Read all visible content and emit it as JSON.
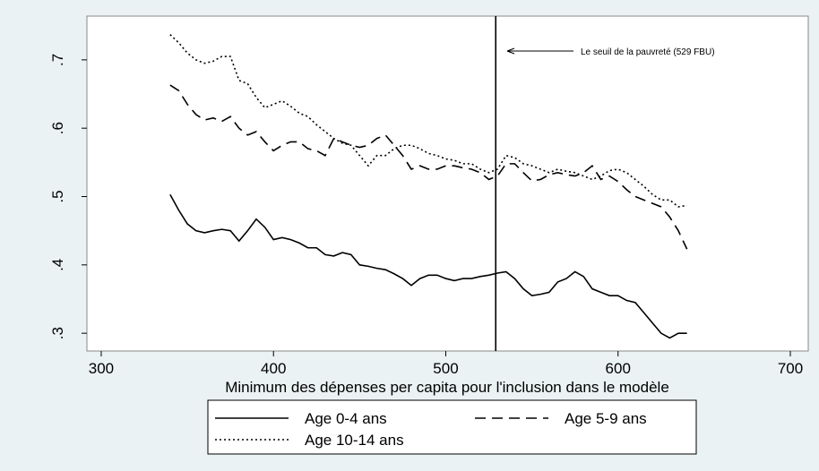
{
  "chart_data": {
    "type": "line",
    "xlabel": "Minimum des dépenses per capita pour l'inclusion dans le modèle",
    "x": [
      340,
      345,
      350,
      355,
      360,
      365,
      370,
      375,
      380,
      385,
      390,
      395,
      400,
      405,
      410,
      415,
      420,
      425,
      430,
      435,
      440,
      445,
      450,
      455,
      460,
      465,
      470,
      475,
      480,
      485,
      490,
      495,
      500,
      505,
      510,
      515,
      520,
      525,
      530,
      535,
      540,
      545,
      550,
      555,
      560,
      565,
      570,
      575,
      580,
      585,
      590,
      595,
      600,
      605,
      610,
      615,
      620,
      625,
      630,
      635,
      640
    ],
    "series": [
      {
        "name": "Age 0-4 ans",
        "color": "#000000",
        "dash": "solid",
        "values": [
          0.503,
          0.48,
          0.46,
          0.45,
          0.447,
          0.45,
          0.452,
          0.45,
          0.435,
          0.45,
          0.467,
          0.455,
          0.437,
          0.44,
          0.437,
          0.432,
          0.425,
          0.425,
          0.415,
          0.413,
          0.418,
          0.415,
          0.4,
          0.398,
          0.395,
          0.393,
          0.387,
          0.38,
          0.37,
          0.38,
          0.385,
          0.385,
          0.38,
          0.377,
          0.38,
          0.38,
          0.383,
          0.385,
          0.388,
          0.39,
          0.38,
          0.365,
          0.355,
          0.357,
          0.36,
          0.375,
          0.38,
          0.39,
          0.383,
          0.365,
          0.36,
          0.355,
          0.355,
          0.348,
          0.345,
          0.33,
          0.315,
          0.3,
          0.293,
          0.3,
          0.3
        ]
      },
      {
        "name": "Age 5-9 ans",
        "color": "#000000",
        "dash": "dashed",
        "values": [
          0.663,
          0.655,
          0.635,
          0.62,
          0.612,
          0.615,
          0.61,
          0.617,
          0.6,
          0.59,
          0.595,
          0.58,
          0.567,
          0.575,
          0.58,
          0.58,
          0.57,
          0.567,
          0.56,
          0.585,
          0.58,
          0.575,
          0.572,
          0.575,
          0.585,
          0.59,
          0.575,
          0.56,
          0.54,
          0.545,
          0.54,
          0.54,
          0.545,
          0.545,
          0.542,
          0.54,
          0.535,
          0.525,
          0.53,
          0.548,
          0.548,
          0.535,
          0.523,
          0.525,
          0.532,
          0.535,
          0.532,
          0.53,
          0.535,
          0.545,
          0.525,
          0.53,
          0.522,
          0.51,
          0.5,
          0.495,
          0.49,
          0.485,
          0.47,
          0.45,
          0.423
        ]
      },
      {
        "name": "Age 10-14 ans",
        "color": "#000000",
        "dash": "dotted",
        "values": [
          0.737,
          0.725,
          0.71,
          0.7,
          0.695,
          0.698,
          0.705,
          0.705,
          0.67,
          0.665,
          0.645,
          0.63,
          0.635,
          0.64,
          0.632,
          0.622,
          0.617,
          0.605,
          0.595,
          0.585,
          0.578,
          0.575,
          0.56,
          0.545,
          0.56,
          0.56,
          0.57,
          0.575,
          0.575,
          0.57,
          0.563,
          0.56,
          0.555,
          0.553,
          0.548,
          0.548,
          0.54,
          0.535,
          0.54,
          0.56,
          0.557,
          0.548,
          0.545,
          0.54,
          0.535,
          0.54,
          0.537,
          0.535,
          0.53,
          0.525,
          0.53,
          0.538,
          0.54,
          0.535,
          0.525,
          0.515,
          0.503,
          0.495,
          0.495,
          0.485,
          0.487
        ]
      }
    ],
    "vline": 529,
    "annotation": "Le seuil de la pauvreté (529 FBU)",
    "xlim": [
      291.7,
      710.4
    ],
    "xticks": [
      300,
      400,
      500,
      600,
      700
    ],
    "ylim": [
      0.274,
      0.764
    ],
    "yticks": [
      {
        "value": 0.3,
        "label": ".3"
      },
      {
        "value": 0.4,
        "label": ".4"
      },
      {
        "value": 0.5,
        "label": ".5"
      },
      {
        "value": 0.6,
        "label": ".6"
      },
      {
        "value": 0.7,
        "label": ".7"
      }
    ],
    "legend": "bottom"
  }
}
